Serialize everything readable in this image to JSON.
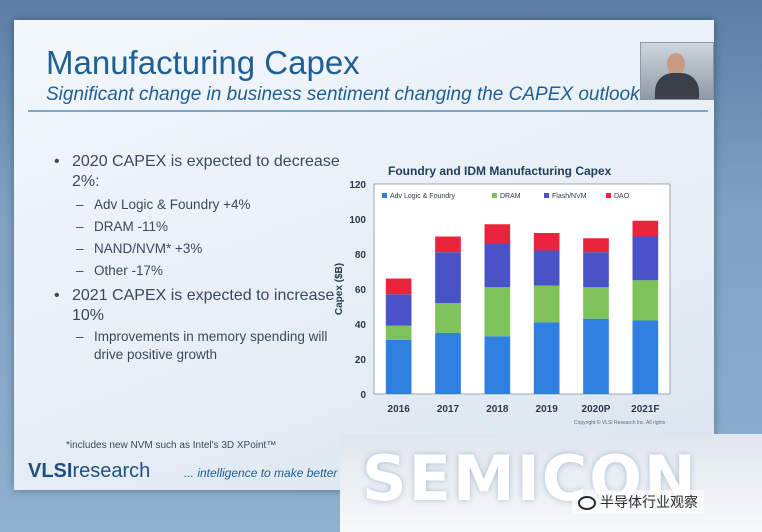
{
  "slide": {
    "title": "Manufacturing Capex",
    "subtitle": "Significant change in business sentiment changing the CAPEX outlook",
    "bullets": [
      {
        "text": "2020 CAPEX is expected to decrease 2%:",
        "sub": [
          "Adv Logic & Foundry +4%",
          "DRAM -11%",
          "NAND/NVM* +3%",
          "Other -17%"
        ]
      },
      {
        "text": "2021 CAPEX is expected to increase 10%",
        "sub": [
          "Improvements in memory spending will drive positive growth"
        ]
      }
    ],
    "footnote": "*includes new NVM such as Intel's 3D XPoint™",
    "logo_bold": "VLSI",
    "logo_rest": "research",
    "tagline": "... intelligence to make better deci"
  },
  "banner": {
    "word": "SEMICON"
  },
  "watermark": {
    "text": "半导体行业观察"
  },
  "chart_data": {
    "type": "bar",
    "stacked": true,
    "title": "Foundry and IDM Manufacturing Capex",
    "ylabel": "Capex ($B)",
    "xlabel": "",
    "ylim": [
      0,
      120
    ],
    "yticks": [
      0,
      20,
      40,
      60,
      80,
      100,
      120
    ],
    "categories": [
      "2016",
      "2017",
      "2018",
      "2019",
      "2020P",
      "2021F"
    ],
    "legend_position": "top",
    "series": [
      {
        "name": "Adv Logic & Foundry",
        "color": "#2f7fe0",
        "values": [
          31,
          35,
          33,
          41,
          43,
          42
        ]
      },
      {
        "name": "DRAM",
        "color": "#7ec25a",
        "values": [
          8,
          17,
          28,
          21,
          18,
          23
        ]
      },
      {
        "name": "Flash/NVM",
        "color": "#4a52c8",
        "values": [
          18,
          29,
          25,
          20,
          20,
          25
        ]
      },
      {
        "name": "DAO",
        "color": "#e8253c",
        "values": [
          9,
          9,
          11,
          10,
          8,
          9
        ]
      }
    ],
    "copyright": "Copyright © VLSI Research Inc. All rights"
  }
}
